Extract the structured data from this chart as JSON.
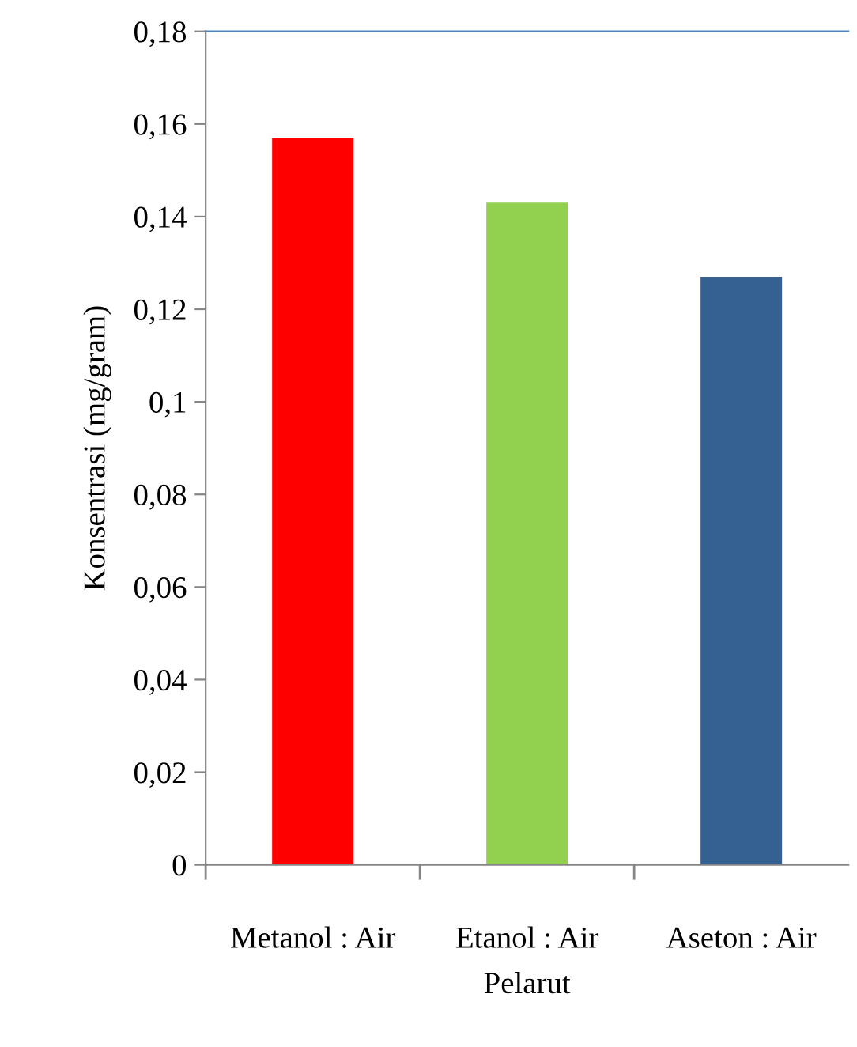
{
  "chart_data": {
    "type": "bar",
    "xlabel": "Pelarut",
    "ylabel": "Konsentrasi (mg/gram)",
    "categories": [
      "Metanol : Air",
      "Etanol : Air",
      "Aseton : Air"
    ],
    "values": [
      0.157,
      0.143,
      0.127
    ],
    "colors": [
      "#ff0000",
      "#92d050",
      "#356092"
    ],
    "ylim": [
      0,
      0.18
    ],
    "yticks": [
      {
        "value": 0,
        "label": "0"
      },
      {
        "value": 0.02,
        "label": "0,02"
      },
      {
        "value": 0.04,
        "label": "0,04"
      },
      {
        "value": 0.06,
        "label": "0,06"
      },
      {
        "value": 0.08,
        "label": "0,08"
      },
      {
        "value": 0.1,
        "label": "0,1"
      },
      {
        "value": 0.12,
        "label": "0,12"
      },
      {
        "value": 0.14,
        "label": "0,14"
      },
      {
        "value": 0.16,
        "label": "0,16"
      },
      {
        "value": 0.18,
        "label": "0,18"
      }
    ],
    "grid": false,
    "legend": false
  }
}
